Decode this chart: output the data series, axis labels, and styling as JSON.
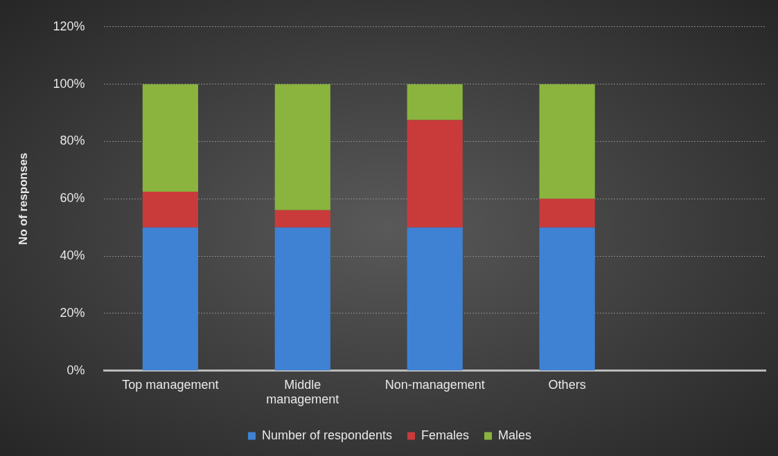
{
  "chart_data": {
    "type": "bar",
    "stacked": true,
    "ylabel": "No of responses",
    "categories": [
      "Top management",
      "Middle management",
      "Non-management",
      "Others",
      null
    ],
    "series": [
      {
        "name": "Number of respondents",
        "color": "#3f82d4",
        "values": [
          50,
          50,
          50,
          50,
          null
        ]
      },
      {
        "name": "Females",
        "color": "#c93b3b",
        "values": [
          12.5,
          6,
          37.5,
          10,
          null
        ]
      },
      {
        "name": "Males",
        "color": "#8ab43e",
        "values": [
          37.5,
          44,
          12.5,
          40,
          null
        ]
      }
    ],
    "ylim": [
      0,
      120
    ],
    "yticks": [
      {
        "value": 0,
        "label": "0%"
      },
      {
        "value": 20,
        "label": "20%"
      },
      {
        "value": 40,
        "label": "40%"
      },
      {
        "value": 60,
        "label": "60%"
      },
      {
        "value": 80,
        "label": "80%"
      },
      {
        "value": 100,
        "label": "100%"
      },
      {
        "value": 120,
        "label": "120%"
      }
    ],
    "grid": "y",
    "legend": "bottom"
  }
}
